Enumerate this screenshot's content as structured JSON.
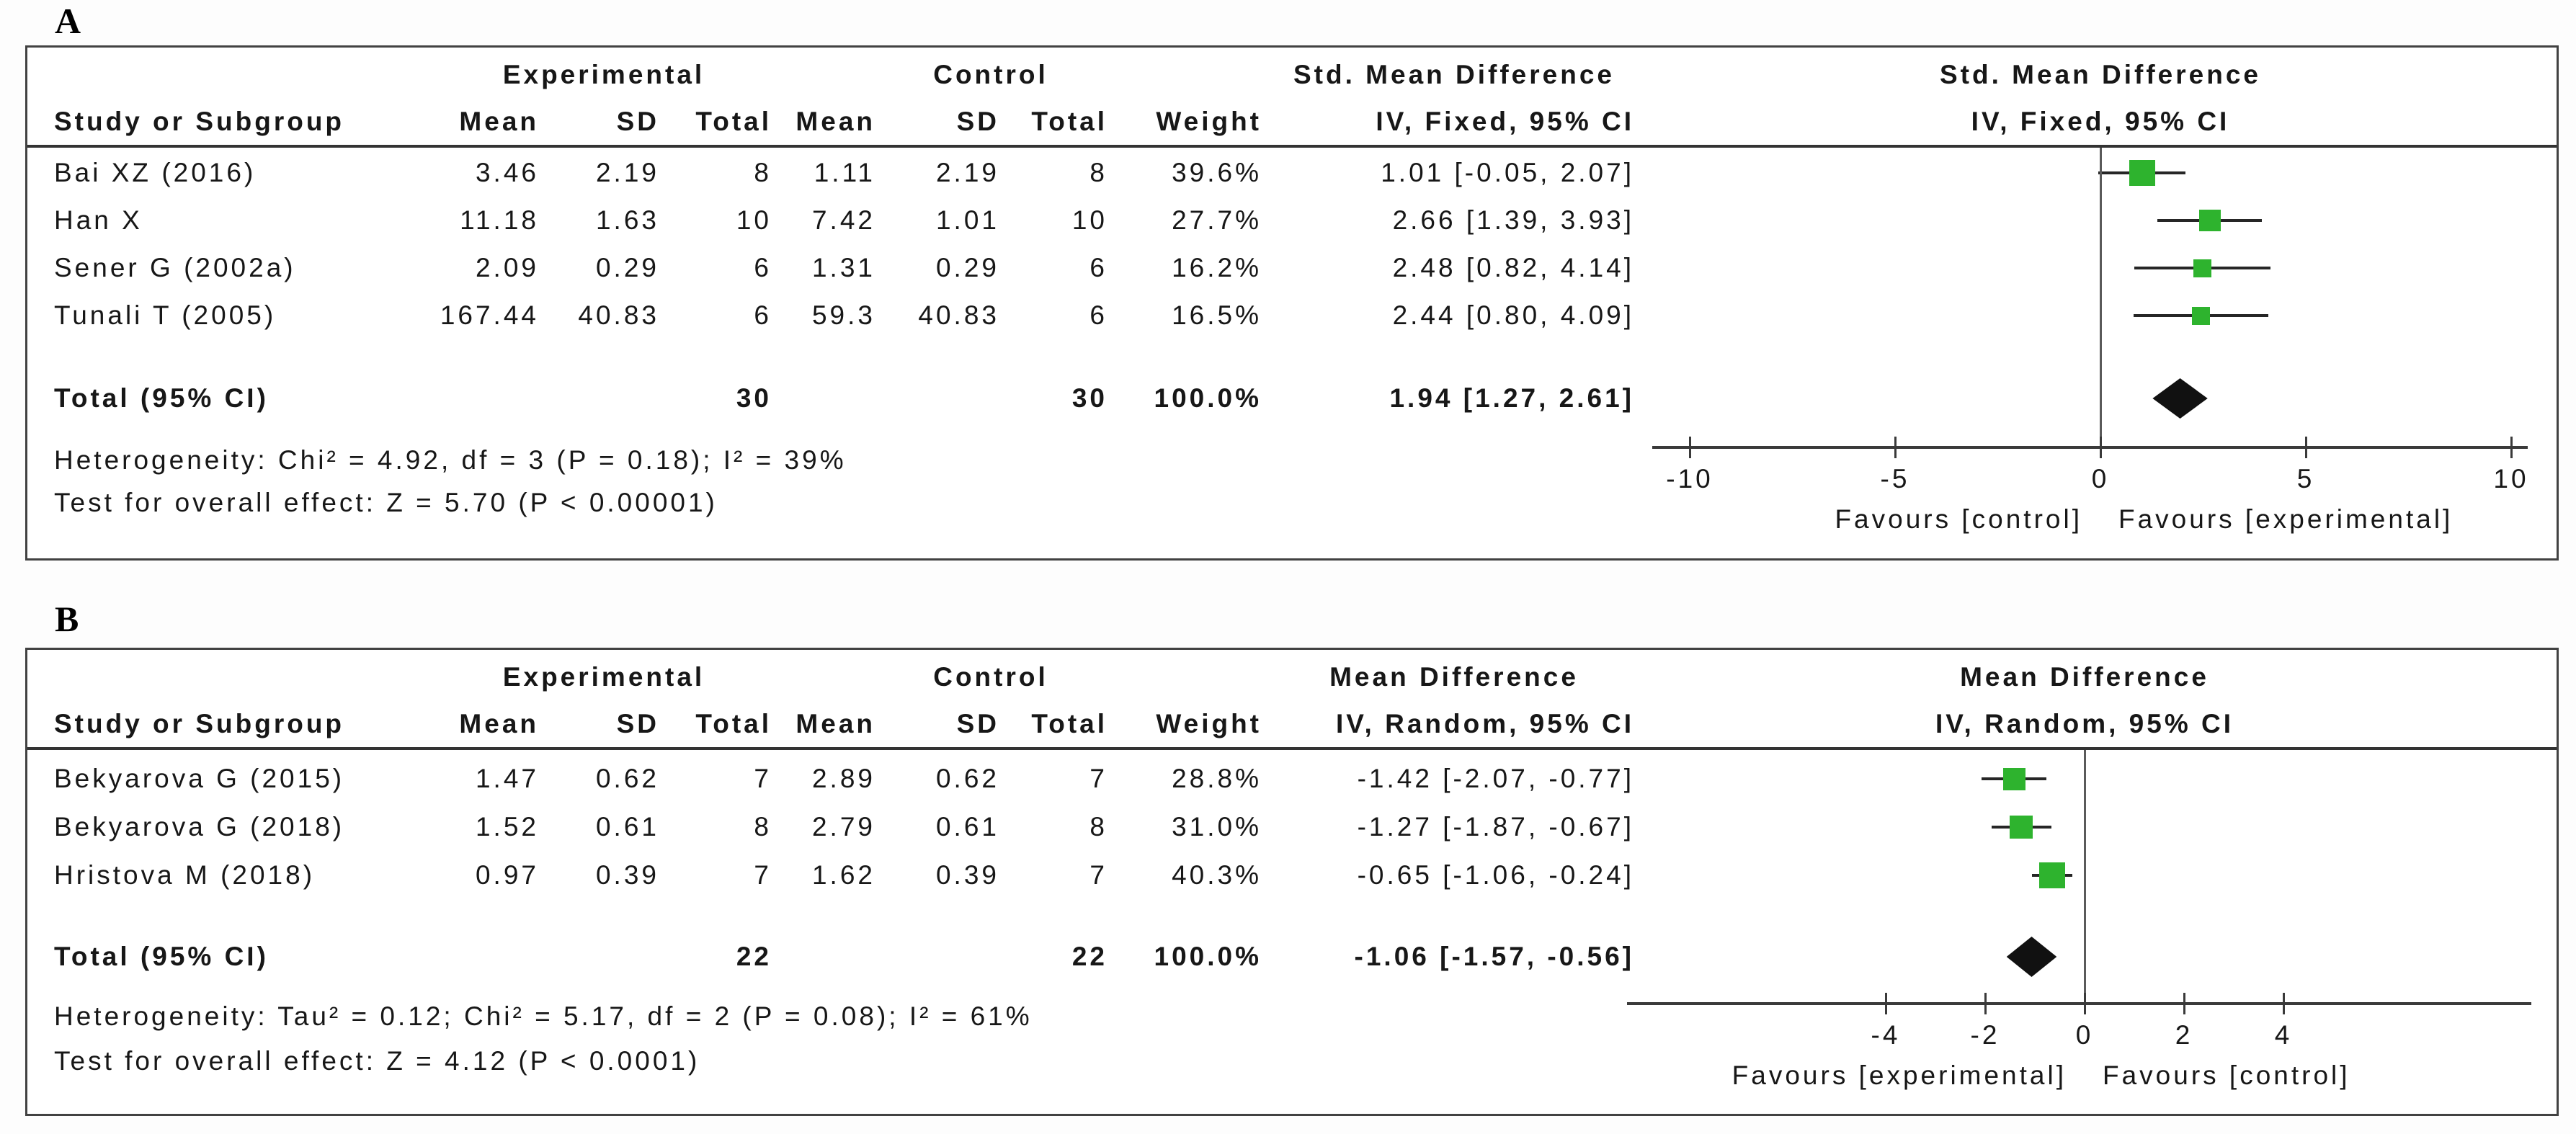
{
  "chart_data": [
    {
      "type": "forest",
      "panel_label": "A",
      "group_exp": "Experimental",
      "group_ctrl": "Control",
      "effect_header": "Std. Mean Difference",
      "method_header": "IV, Fixed, 95% CI",
      "col_study": "Study or Subgroup",
      "col_mean": "Mean",
      "col_sd": "SD",
      "col_total": "Total",
      "col_weight": "Weight",
      "marker_color": "#2eb32e",
      "diamond_color": "#111111",
      "studies": [
        {
          "name": "Bai XZ (2016)",
          "e_mean": "3.46",
          "e_sd": "2.19",
          "e_total": "8",
          "c_mean": "1.11",
          "c_sd": "2.19",
          "c_total": "8",
          "weight": "39.6%",
          "ci_text": "1.01 [-0.05, 2.07]",
          "est": 1.01,
          "lo": -0.05,
          "hi": 2.07,
          "weight_pct": 39.6
        },
        {
          "name": "Han X",
          "e_mean": "11.18",
          "e_sd": "1.63",
          "e_total": "10",
          "c_mean": "7.42",
          "c_sd": "1.01",
          "c_total": "10",
          "weight": "27.7%",
          "ci_text": "2.66 [1.39, 3.93]",
          "est": 2.66,
          "lo": 1.39,
          "hi": 3.93,
          "weight_pct": 27.7
        },
        {
          "name": "Sener G (2002a)",
          "e_mean": "2.09",
          "e_sd": "0.29",
          "e_total": "6",
          "c_mean": "1.31",
          "c_sd": "0.29",
          "c_total": "6",
          "weight": "16.2%",
          "ci_text": "2.48 [0.82, 4.14]",
          "est": 2.48,
          "lo": 0.82,
          "hi": 4.14,
          "weight_pct": 16.2
        },
        {
          "name": "Tunali T (2005)",
          "e_mean": "167.44",
          "e_sd": "40.83",
          "e_total": "6",
          "c_mean": "59.3",
          "c_sd": "40.83",
          "c_total": "6",
          "weight": "16.5%",
          "ci_text": "2.44 [0.80, 4.09]",
          "est": 2.44,
          "lo": 0.8,
          "hi": 4.09,
          "weight_pct": 16.5
        }
      ],
      "total": {
        "label": "Total (95% CI)",
        "e_total": "30",
        "c_total": "30",
        "weight": "100.0%",
        "ci_text": "1.94 [1.27, 2.61]",
        "est": 1.94,
        "lo": 1.27,
        "hi": 2.61
      },
      "heterogeneity": "Heterogeneity: Chi² = 4.92, df = 3 (P = 0.18); I² = 39%",
      "overall_test": "Test for overall effect: Z = 5.70 (P < 0.00001)",
      "axis": {
        "min": -10,
        "max": 10,
        "ticks": [
          -10,
          -5,
          0,
          5,
          10
        ],
        "favours_left": "Favours [control]",
        "favours_right": "Favours [experimental]"
      }
    },
    {
      "type": "forest",
      "panel_label": "B",
      "group_exp": "Experimental",
      "group_ctrl": "Control",
      "effect_header": "Mean Difference",
      "method_header": "IV, Random, 95% CI",
      "col_study": "Study or Subgroup",
      "col_mean": "Mean",
      "col_sd": "SD",
      "col_total": "Total",
      "col_weight": "Weight",
      "marker_color": "#2eb32e",
      "diamond_color": "#111111",
      "studies": [
        {
          "name": "Bekyarova G (2015)",
          "e_mean": "1.47",
          "e_sd": "0.62",
          "e_total": "7",
          "c_mean": "2.89",
          "c_sd": "0.62",
          "c_total": "7",
          "weight": "28.8%",
          "ci_text": "-1.42 [-2.07, -0.77]",
          "est": -1.42,
          "lo": -2.07,
          "hi": -0.77,
          "weight_pct": 28.8
        },
        {
          "name": "Bekyarova G (2018)",
          "e_mean": "1.52",
          "e_sd": "0.61",
          "e_total": "8",
          "c_mean": "2.79",
          "c_sd": "0.61",
          "c_total": "8",
          "weight": "31.0%",
          "ci_text": "-1.27 [-1.87, -0.67]",
          "est": -1.27,
          "lo": -1.87,
          "hi": -0.67,
          "weight_pct": 31.0
        },
        {
          "name": "Hristova M (2018)",
          "e_mean": "0.97",
          "e_sd": "0.39",
          "e_total": "7",
          "c_mean": "1.62",
          "c_sd": "0.39",
          "c_total": "7",
          "weight": "40.3%",
          "ci_text": "-0.65 [-1.06, -0.24]",
          "est": -0.65,
          "lo": -1.06,
          "hi": -0.24,
          "weight_pct": 40.3
        }
      ],
      "total": {
        "label": "Total (95% CI)",
        "e_total": "22",
        "c_total": "22",
        "weight": "100.0%",
        "ci_text": "-1.06 [-1.57, -0.56]",
        "est": -1.06,
        "lo": -1.57,
        "hi": -0.56
      },
      "heterogeneity": "Heterogeneity: Tau² = 0.12; Chi² = 5.17, df = 2 (P = 0.08); I² = 61%",
      "overall_test": "Test for overall effect: Z = 4.12 (P < 0.0001)",
      "axis": {
        "min": -4,
        "max": 4,
        "ticks": [
          -4,
          -2,
          0,
          2,
          4
        ],
        "favours_left": "Favours [experimental]",
        "favours_right": "Favours [control]"
      }
    }
  ]
}
